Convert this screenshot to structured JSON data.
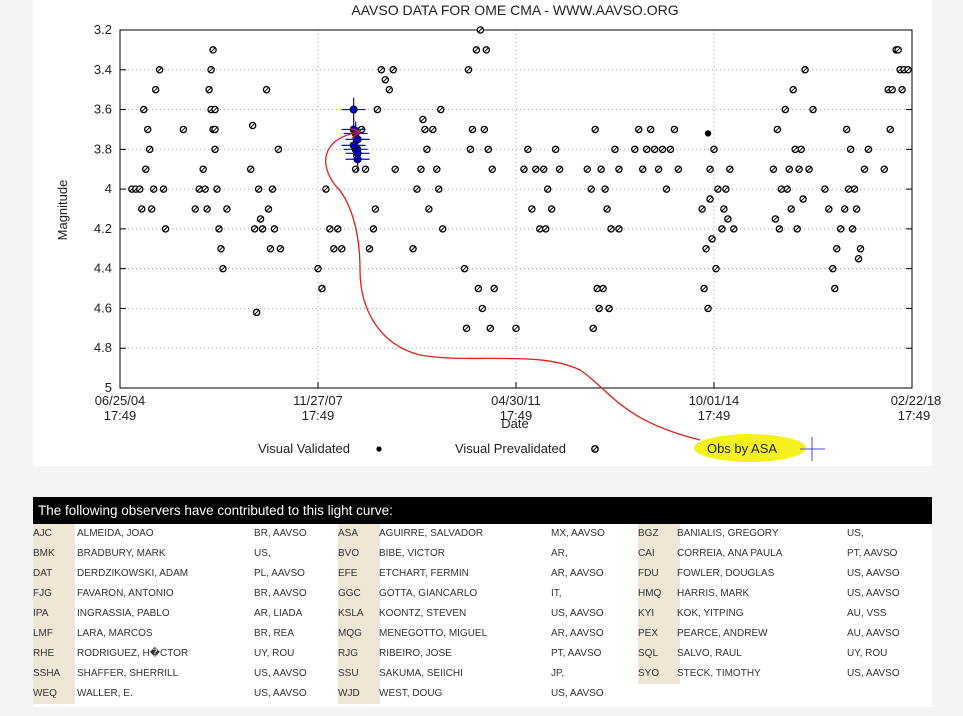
{
  "chart_data": {
    "type": "scatter",
    "title": "AAVSO DATA FOR OME CMA - WWW.AAVSO.ORG",
    "xlabel": "Date",
    "ylabel": "Magnitude",
    "ylim": [
      5,
      3.2
    ],
    "y_inverted": true,
    "y_ticks": [
      "3.2",
      "3.4",
      "3.6",
      "3.8",
      "4",
      "4.2",
      "4.4",
      "4.6",
      "4.8",
      "5"
    ],
    "x_ticks": [
      {
        "date": "06/25/04",
        "time": "17:49"
      },
      {
        "date": "11/27/07",
        "time": "17:49"
      },
      {
        "date": "04/30/11",
        "time": "17:49"
      },
      {
        "date": "10/01/14",
        "time": "17:49"
      },
      {
        "date": "02/22/18",
        "time": "17:49"
      }
    ],
    "grid": true,
    "legend": [
      {
        "label": "Visual Validated",
        "marker": "filled-dot"
      },
      {
        "label": "Visual Prevalidated",
        "marker": "hatched-circle"
      }
    ],
    "series": [
      {
        "name": "Visual Prevalidated",
        "color": "#000000",
        "points": [
          [
            0.3,
            4.0
          ],
          [
            0.4,
            4.0
          ],
          [
            0.5,
            4.0
          ],
          [
            0.6,
            3.6
          ],
          [
            0.7,
            3.7
          ],
          [
            0.75,
            3.8
          ],
          [
            0.8,
            4.1
          ],
          [
            0.9,
            3.5
          ],
          [
            1.0,
            3.4
          ],
          [
            1.1,
            4.0
          ],
          [
            1.15,
            4.2
          ],
          [
            0.65,
            3.9
          ],
          [
            0.55,
            4.1
          ],
          [
            0.85,
            4.0
          ],
          [
            1.6,
            3.7
          ],
          [
            1.9,
            4.1
          ],
          [
            2.0,
            4.0
          ],
          [
            2.1,
            3.9
          ],
          [
            2.15,
            4.0
          ],
          [
            2.2,
            4.1
          ],
          [
            2.3,
            3.6
          ],
          [
            2.35,
            3.7
          ],
          [
            2.4,
            3.8
          ],
          [
            2.45,
            4.0
          ],
          [
            2.5,
            4.2
          ],
          [
            2.55,
            4.3
          ],
          [
            2.6,
            4.4
          ],
          [
            2.7,
            4.1
          ],
          [
            2.3,
            3.4
          ],
          [
            2.35,
            3.3
          ],
          [
            2.25,
            3.5
          ],
          [
            2.4,
            3.6
          ],
          [
            2.4,
            3.7
          ],
          [
            3.3,
            3.9
          ],
          [
            3.4,
            4.2
          ],
          [
            3.45,
            4.62
          ],
          [
            3.5,
            4.0
          ],
          [
            3.6,
            4.2
          ],
          [
            3.7,
            3.5
          ],
          [
            3.75,
            4.1
          ],
          [
            3.8,
            4.3
          ],
          [
            3.9,
            4.2
          ],
          [
            4.0,
            3.8
          ],
          [
            4.05,
            4.3
          ],
          [
            3.35,
            3.68
          ],
          [
            3.55,
            4.15
          ],
          [
            3.85,
            4.0
          ],
          [
            5.0,
            4.4
          ],
          [
            5.1,
            4.5
          ],
          [
            5.2,
            4.0
          ],
          [
            5.3,
            4.2
          ],
          [
            5.4,
            4.3
          ],
          [
            5.5,
            4.2
          ],
          [
            5.6,
            4.3
          ],
          [
            5.95,
            3.9
          ],
          [
            6.0,
            3.8
          ],
          [
            6.1,
            3.7
          ],
          [
            6.2,
            3.9
          ],
          [
            6.3,
            4.3
          ],
          [
            6.4,
            4.2
          ],
          [
            6.45,
            4.1
          ],
          [
            6.5,
            3.6
          ],
          [
            6.6,
            3.4
          ],
          [
            6.7,
            3.45
          ],
          [
            6.8,
            3.5
          ],
          [
            6.9,
            3.4
          ],
          [
            6.95,
            3.9
          ],
          [
            7.4,
            4.3
          ],
          [
            7.5,
            4.0
          ],
          [
            7.6,
            3.9
          ],
          [
            7.7,
            3.7
          ],
          [
            7.75,
            3.8
          ],
          [
            7.8,
            4.1
          ],
          [
            7.9,
            3.7
          ],
          [
            8.0,
            3.9
          ],
          [
            8.1,
            3.6
          ],
          [
            8.15,
            4.2
          ],
          [
            7.65,
            3.65
          ],
          [
            8.05,
            4.0
          ],
          [
            8.7,
            4.4
          ],
          [
            8.75,
            4.7
          ],
          [
            8.8,
            3.4
          ],
          [
            8.85,
            3.8
          ],
          [
            9.0,
            3.3
          ],
          [
            9.05,
            4.5
          ],
          [
            9.1,
            3.2
          ],
          [
            9.15,
            4.6
          ],
          [
            9.2,
            3.7
          ],
          [
            9.3,
            3.8
          ],
          [
            9.35,
            4.7
          ],
          [
            9.4,
            3.9
          ],
          [
            9.45,
            4.5
          ],
          [
            8.9,
            3.7
          ],
          [
            9.25,
            3.3
          ],
          [
            10.0,
            4.7
          ],
          [
            10.2,
            3.9
          ],
          [
            10.3,
            3.8
          ],
          [
            10.5,
            3.9
          ],
          [
            10.6,
            4.2
          ],
          [
            10.7,
            3.9
          ],
          [
            10.8,
            4.0
          ],
          [
            10.9,
            4.1
          ],
          [
            11.0,
            3.8
          ],
          [
            11.1,
            3.9
          ],
          [
            10.4,
            4.1
          ],
          [
            10.75,
            4.2
          ],
          [
            11.8,
            3.9
          ],
          [
            11.9,
            4.0
          ],
          [
            12.0,
            3.7
          ],
          [
            12.05,
            4.5
          ],
          [
            12.1,
            4.6
          ],
          [
            12.2,
            4.5
          ],
          [
            12.25,
            4.0
          ],
          [
            12.3,
            4.1
          ],
          [
            12.4,
            4.2
          ],
          [
            12.5,
            3.8
          ],
          [
            12.6,
            3.9
          ],
          [
            11.95,
            4.7
          ],
          [
            12.15,
            3.9
          ],
          [
            12.35,
            4.6
          ],
          [
            12.6,
            4.2
          ],
          [
            13.0,
            3.8
          ],
          [
            13.1,
            3.7
          ],
          [
            13.2,
            3.9
          ],
          [
            13.3,
            3.8
          ],
          [
            13.4,
            3.7
          ],
          [
            13.5,
            3.8
          ],
          [
            13.6,
            3.9
          ],
          [
            13.7,
            3.8
          ],
          [
            13.8,
            4.0
          ],
          [
            13.9,
            3.8
          ],
          [
            14.0,
            3.7
          ],
          [
            14.1,
            3.9
          ],
          [
            14.7,
            4.1
          ],
          [
            14.8,
            4.3
          ],
          [
            14.9,
            3.9
          ],
          [
            15.0,
            3.8
          ],
          [
            15.1,
            4.0
          ],
          [
            15.2,
            4.2
          ],
          [
            15.3,
            4.0
          ],
          [
            15.4,
            3.9
          ],
          [
            15.5,
            4.2
          ],
          [
            14.75,
            4.5
          ],
          [
            14.85,
            4.6
          ],
          [
            14.95,
            4.25
          ],
          [
            15.05,
            4.4
          ],
          [
            15.25,
            4.1
          ],
          [
            15.35,
            4.15
          ],
          [
            14.9,
            4.05
          ],
          [
            16.5,
            3.9
          ],
          [
            16.6,
            3.7
          ],
          [
            16.7,
            4.0
          ],
          [
            16.8,
            3.6
          ],
          [
            16.9,
            3.9
          ],
          [
            17.0,
            3.5
          ],
          [
            17.1,
            4.2
          ],
          [
            17.2,
            3.8
          ],
          [
            17.3,
            3.4
          ],
          [
            17.4,
            3.9
          ],
          [
            17.5,
            3.6
          ],
          [
            16.55,
            4.15
          ],
          [
            16.65,
            4.2
          ],
          [
            16.85,
            4.0
          ],
          [
            16.95,
            4.1
          ],
          [
            17.05,
            3.8
          ],
          [
            17.15,
            3.9
          ],
          [
            17.25,
            4.05
          ],
          [
            17.8,
            4.0
          ],
          [
            17.9,
            4.1
          ],
          [
            18.0,
            4.4
          ],
          [
            18.05,
            4.5
          ],
          [
            18.1,
            4.3
          ],
          [
            18.2,
            4.2
          ],
          [
            18.3,
            4.1
          ],
          [
            18.4,
            4.0
          ],
          [
            18.5,
            4.2
          ],
          [
            18.6,
            4.1
          ],
          [
            18.7,
            4.3
          ],
          [
            18.8,
            3.9
          ],
          [
            18.9,
            3.8
          ],
          [
            18.35,
            3.7
          ],
          [
            18.45,
            3.8
          ],
          [
            18.55,
            4.0
          ],
          [
            18.65,
            4.35
          ],
          [
            19.3,
            3.9
          ],
          [
            19.4,
            3.5
          ],
          [
            19.5,
            3.5
          ],
          [
            19.6,
            3.3
          ],
          [
            19.7,
            3.4
          ],
          [
            19.8,
            3.4
          ],
          [
            19.9,
            3.4
          ],
          [
            19.75,
            3.5
          ],
          [
            19.45,
            3.7
          ],
          [
            19.65,
            3.3
          ]
        ]
      },
      {
        "name": "Visual Validated",
        "color": "#000000",
        "points": [
          [
            14.85,
            3.72
          ]
        ]
      },
      {
        "name": "Obs by ASA",
        "color": "#0000ff",
        "points": [
          [
            5.9,
            3.6
          ],
          [
            5.9,
            3.7
          ],
          [
            5.95,
            3.72
          ],
          [
            5.95,
            3.8
          ],
          [
            6.0,
            3.82
          ],
          [
            6.0,
            3.85
          ],
          [
            5.9,
            3.78
          ],
          [
            6.0,
            3.75
          ]
        ]
      }
    ],
    "x_range_index": [
      0,
      20
    ],
    "annotations": [
      {
        "text": "Obs by ASA",
        "highlight": "#ffff00"
      }
    ]
  },
  "observers": {
    "header": "The following observers have contributed to this light curve:",
    "rows": [
      [
        {
          "code": "AJC",
          "name": "ALMEIDA, JOAO",
          "loc": "BR, AAVSO"
        },
        {
          "code": "ASA",
          "name": "AGUIRRE, SALVADOR",
          "loc": "MX, AAVSO"
        },
        {
          "code": "BGZ",
          "name": "BANIALIS, GREGORY",
          "loc": "US,"
        }
      ],
      [
        {
          "code": "BMK",
          "name": "BRADBURY, MARK",
          "loc": "US,"
        },
        {
          "code": "BVO",
          "name": "BIBE, VICTOR",
          "loc": "AR,"
        },
        {
          "code": "CAI",
          "name": "CORREIA, ANA PAULA",
          "loc": "PT, AAVSO"
        }
      ],
      [
        {
          "code": "DAT",
          "name": "DERDZIKOWSKI, ADAM",
          "loc": "PL, AAVSO"
        },
        {
          "code": "EFE",
          "name": "ETCHART, FERMIN",
          "loc": "AR, AAVSO"
        },
        {
          "code": "FDU",
          "name": "FOWLER, DOUGLAS",
          "loc": "US, AAVSO"
        }
      ],
      [
        {
          "code": "FJG",
          "name": "FAVARON, ANTONIO",
          "loc": "BR, AAVSO"
        },
        {
          "code": "GGC",
          "name": "GOTTA, GIANCARLO",
          "loc": "IT,"
        },
        {
          "code": "HMQ",
          "name": "HARRIS, MARK",
          "loc": "US, AAVSO"
        }
      ],
      [
        {
          "code": "IPA",
          "name": "INGRASSIA, PABLO",
          "loc": "AR, LIADA"
        },
        {
          "code": "KSLA",
          "name": "KOONTZ, STEVEN",
          "loc": "US, AAVSO"
        },
        {
          "code": "KYI",
          "name": "KOK, YITPING",
          "loc": "AU, VSS"
        }
      ],
      [
        {
          "code": "LMF",
          "name": "LARA, MARCOS",
          "loc": "BR, REA"
        },
        {
          "code": "MQG",
          "name": "MENEGOTTO, MIGUEL",
          "loc": "AR, AAVSO"
        },
        {
          "code": "PEX",
          "name": "PEARCE, ANDREW",
          "loc": "AU, AAVSO"
        }
      ],
      [
        {
          "code": "RHE",
          "name": "RODRIGUEZ, H�CTOR",
          "loc": "UY, ROU"
        },
        {
          "code": "RJG",
          "name": "RIBEIRO, JOSE",
          "loc": "PT, AAVSO"
        },
        {
          "code": "SQL",
          "name": "SALVO, RAUL",
          "loc": "UY, ROU"
        }
      ],
      [
        {
          "code": "SSHA",
          "name": "SHAFFER, SHERRILL",
          "loc": "US, AAVSO"
        },
        {
          "code": "SSU",
          "name": "SAKUMA, SEIICHI",
          "loc": "JP,"
        },
        {
          "code": "SYO",
          "name": "STECK, TIMOTHY",
          "loc": "US, AAVSO"
        }
      ],
      [
        {
          "code": "WEQ",
          "name": "WALLER, E.",
          "loc": "US, AAVSO"
        },
        {
          "code": "WJD",
          "name": "WEST, DOUG",
          "loc": "US, AAVSO"
        }
      ]
    ]
  }
}
